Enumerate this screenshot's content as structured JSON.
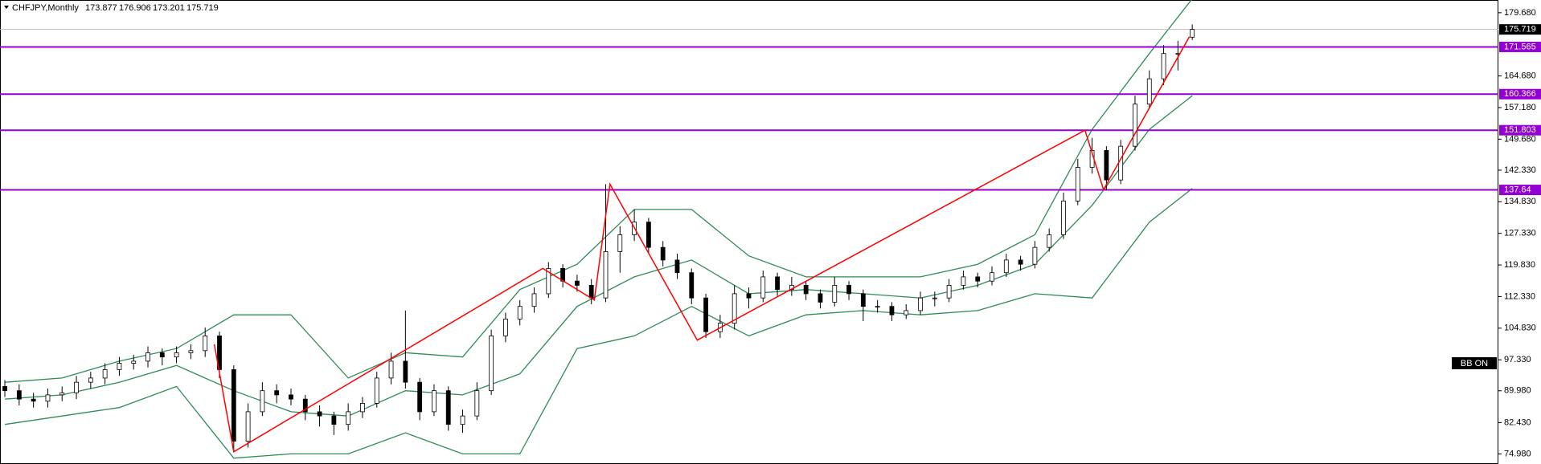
{
  "chart_data": {
    "type": "candlestick",
    "title": "CHFJPY,Monthly",
    "annotation": "BB ON",
    "xlim": [
      -0.34,
      104.4
    ],
    "ylim": [
      72.6,
      182.7
    ],
    "yticks": [
      {
        "value": 179.68,
        "label": "179.680"
      },
      {
        "value": 164.68,
        "label": "164.680"
      },
      {
        "value": 157.18,
        "label": "157.180"
      },
      {
        "value": 149.68,
        "label": "149.680"
      },
      {
        "value": 142.33,
        "label": "142.330"
      },
      {
        "value": 134.83,
        "label": "134.830"
      },
      {
        "value": 127.33,
        "label": "127.330"
      },
      {
        "value": 119.83,
        "label": "119.830"
      },
      {
        "value": 112.33,
        "label": "112.330"
      },
      {
        "value": 104.83,
        "label": "104.830"
      },
      {
        "value": 97.33,
        "label": "97.330"
      },
      {
        "value": 89.98,
        "label": "89.980"
      },
      {
        "value": 82.43,
        "label": "82.430"
      },
      {
        "value": 74.98,
        "label": "74.980"
      }
    ],
    "levels": [
      171.565,
      160.366,
      151.803,
      137.64
    ],
    "level_color": "#9400d3",
    "candles": [
      [
        91,
        92.5,
        88.5,
        90
      ],
      [
        90,
        91.5,
        86.5,
        88
      ],
      [
        88,
        89.5,
        86,
        87.5
      ],
      [
        87.5,
        90.5,
        86,
        89
      ],
      [
        89,
        91,
        87.5,
        89.5
      ],
      [
        89.5,
        93.5,
        88,
        92
      ],
      [
        92,
        94.5,
        90.5,
        93
      ],
      [
        93,
        96.5,
        91.5,
        95
      ],
      [
        95,
        98,
        93.5,
        96.5
      ],
      [
        96.5,
        98.5,
        95,
        97
      ],
      [
        97,
        100.5,
        95.5,
        99
      ],
      [
        99,
        100,
        96,
        98
      ],
      [
        98,
        100.5,
        96.5,
        99
      ],
      [
        99,
        101,
        97.5,
        99.5
      ],
      [
        99.5,
        105,
        98,
        103
      ],
      [
        103,
        104,
        93,
        95
      ],
      [
        95,
        96,
        75.5,
        78
      ],
      [
        78,
        87,
        76.5,
        85
      ],
      [
        85,
        92,
        84,
        90
      ],
      [
        90,
        91.5,
        87,
        89
      ],
      [
        89,
        90.5,
        86.5,
        88
      ],
      [
        88,
        89,
        83,
        85
      ],
      [
        85,
        86.5,
        81.5,
        84
      ],
      [
        84,
        85,
        79.5,
        82
      ],
      [
        82,
        87,
        80.5,
        85
      ],
      [
        85,
        88.5,
        83.5,
        87
      ],
      [
        87,
        94.5,
        86,
        93
      ],
      [
        93,
        99,
        91.5,
        97
      ],
      [
        97,
        109,
        90.5,
        92
      ],
      [
        92,
        93,
        83,
        85
      ],
      [
        85,
        91.5,
        84,
        90
      ],
      [
        90,
        91,
        80.5,
        82
      ],
      [
        82,
        85.5,
        80,
        84
      ],
      [
        84,
        92,
        83,
        90
      ],
      [
        90,
        104.5,
        89,
        103
      ],
      [
        103,
        108.5,
        101.5,
        107
      ],
      [
        107,
        111.5,
        105.5,
        110
      ],
      [
        110,
        114.5,
        108.5,
        113
      ],
      [
        113,
        120.5,
        112,
        119
      ],
      [
        119,
        120,
        114.5,
        116
      ],
      [
        116,
        117.5,
        113.5,
        115
      ],
      [
        115,
        116.5,
        110.5,
        112
      ],
      [
        112,
        139,
        111,
        123
      ],
      [
        123,
        129,
        118,
        127
      ],
      [
        127,
        133,
        125.5,
        130
      ],
      [
        130,
        131,
        122.5,
        124
      ],
      [
        124,
        125.5,
        119.5,
        121
      ],
      [
        121,
        122.5,
        116.5,
        118
      ],
      [
        118,
        119,
        110.5,
        112
      ],
      [
        112,
        113,
        102.5,
        104
      ],
      [
        104,
        108,
        102.5,
        106
      ],
      [
        106,
        115,
        104.5,
        113
      ],
      [
        113,
        114.5,
        109.5,
        112
      ],
      [
        112,
        118.5,
        111,
        117
      ],
      [
        117,
        118,
        112.5,
        114
      ],
      [
        114,
        117,
        112.5,
        115
      ],
      [
        115,
        116,
        111.5,
        113
      ],
      [
        113,
        114,
        109.5,
        111
      ],
      [
        111,
        117,
        110,
        115
      ],
      [
        115,
        116,
        111.5,
        113
      ],
      [
        113,
        114,
        106.5,
        110
      ],
      [
        110,
        111.5,
        108.5,
        110
      ],
      [
        110,
        111,
        106.5,
        108
      ],
      [
        108,
        110.5,
        107,
        109
      ],
      [
        109,
        113.5,
        108,
        112
      ],
      [
        112,
        113.5,
        110,
        112
      ],
      [
        112,
        116.5,
        111,
        115
      ],
      [
        115,
        118.5,
        114,
        117
      ],
      [
        117,
        118,
        114.5,
        116
      ],
      [
        116,
        119.5,
        115,
        118
      ],
      [
        118,
        122.5,
        117,
        121
      ],
      [
        121,
        122,
        118.5,
        120
      ],
      [
        120,
        125.5,
        119,
        124
      ],
      [
        124,
        128.5,
        123,
        127
      ],
      [
        127,
        137,
        126,
        135
      ],
      [
        135,
        145,
        134,
        143
      ],
      [
        143,
        150,
        141.5,
        147
      ],
      [
        147,
        148,
        137.5,
        140
      ],
      [
        140,
        149.5,
        139,
        148
      ],
      [
        148,
        160,
        147,
        158
      ],
      [
        158,
        166,
        157,
        164
      ],
      [
        164,
        172,
        162.5,
        170
      ],
      [
        170,
        173,
        166,
        170
      ],
      [
        173.877,
        176.906,
        173.201,
        175.719
      ]
    ],
    "bands": {
      "color": "#2e8b57",
      "x": [
        0,
        4,
        8,
        12,
        16,
        20,
        24,
        28,
        32,
        36,
        40,
        44,
        48,
        52,
        56,
        60,
        64,
        68,
        72,
        76,
        80,
        83
      ],
      "upper": [
        92,
        93,
        97,
        100,
        108,
        108,
        93,
        99,
        98,
        114,
        120,
        133,
        133,
        122,
        117,
        117,
        117,
        120,
        127,
        152,
        170,
        183
      ],
      "middle": [
        88,
        89,
        92,
        96,
        90,
        85,
        84,
        90,
        89,
        94,
        110,
        117,
        121,
        113,
        114,
        113,
        112,
        115,
        120,
        134,
        152,
        160
      ],
      "lower": [
        82,
        84,
        86,
        91,
        74,
        75,
        75,
        80,
        75,
        75,
        100,
        103,
        110,
        103,
        108,
        109,
        108,
        109,
        113,
        112,
        130,
        138
      ]
    },
    "zigzag": {
      "color": "#ff0000",
      "x": [
        14.64,
        16.0,
        37.6,
        41.2,
        42.3,
        48.4,
        75.5,
        76.8,
        82.8
      ],
      "y": [
        101,
        75.5,
        119,
        111.5,
        139,
        102,
        151.8,
        137.7,
        174
      ]
    }
  }
}
